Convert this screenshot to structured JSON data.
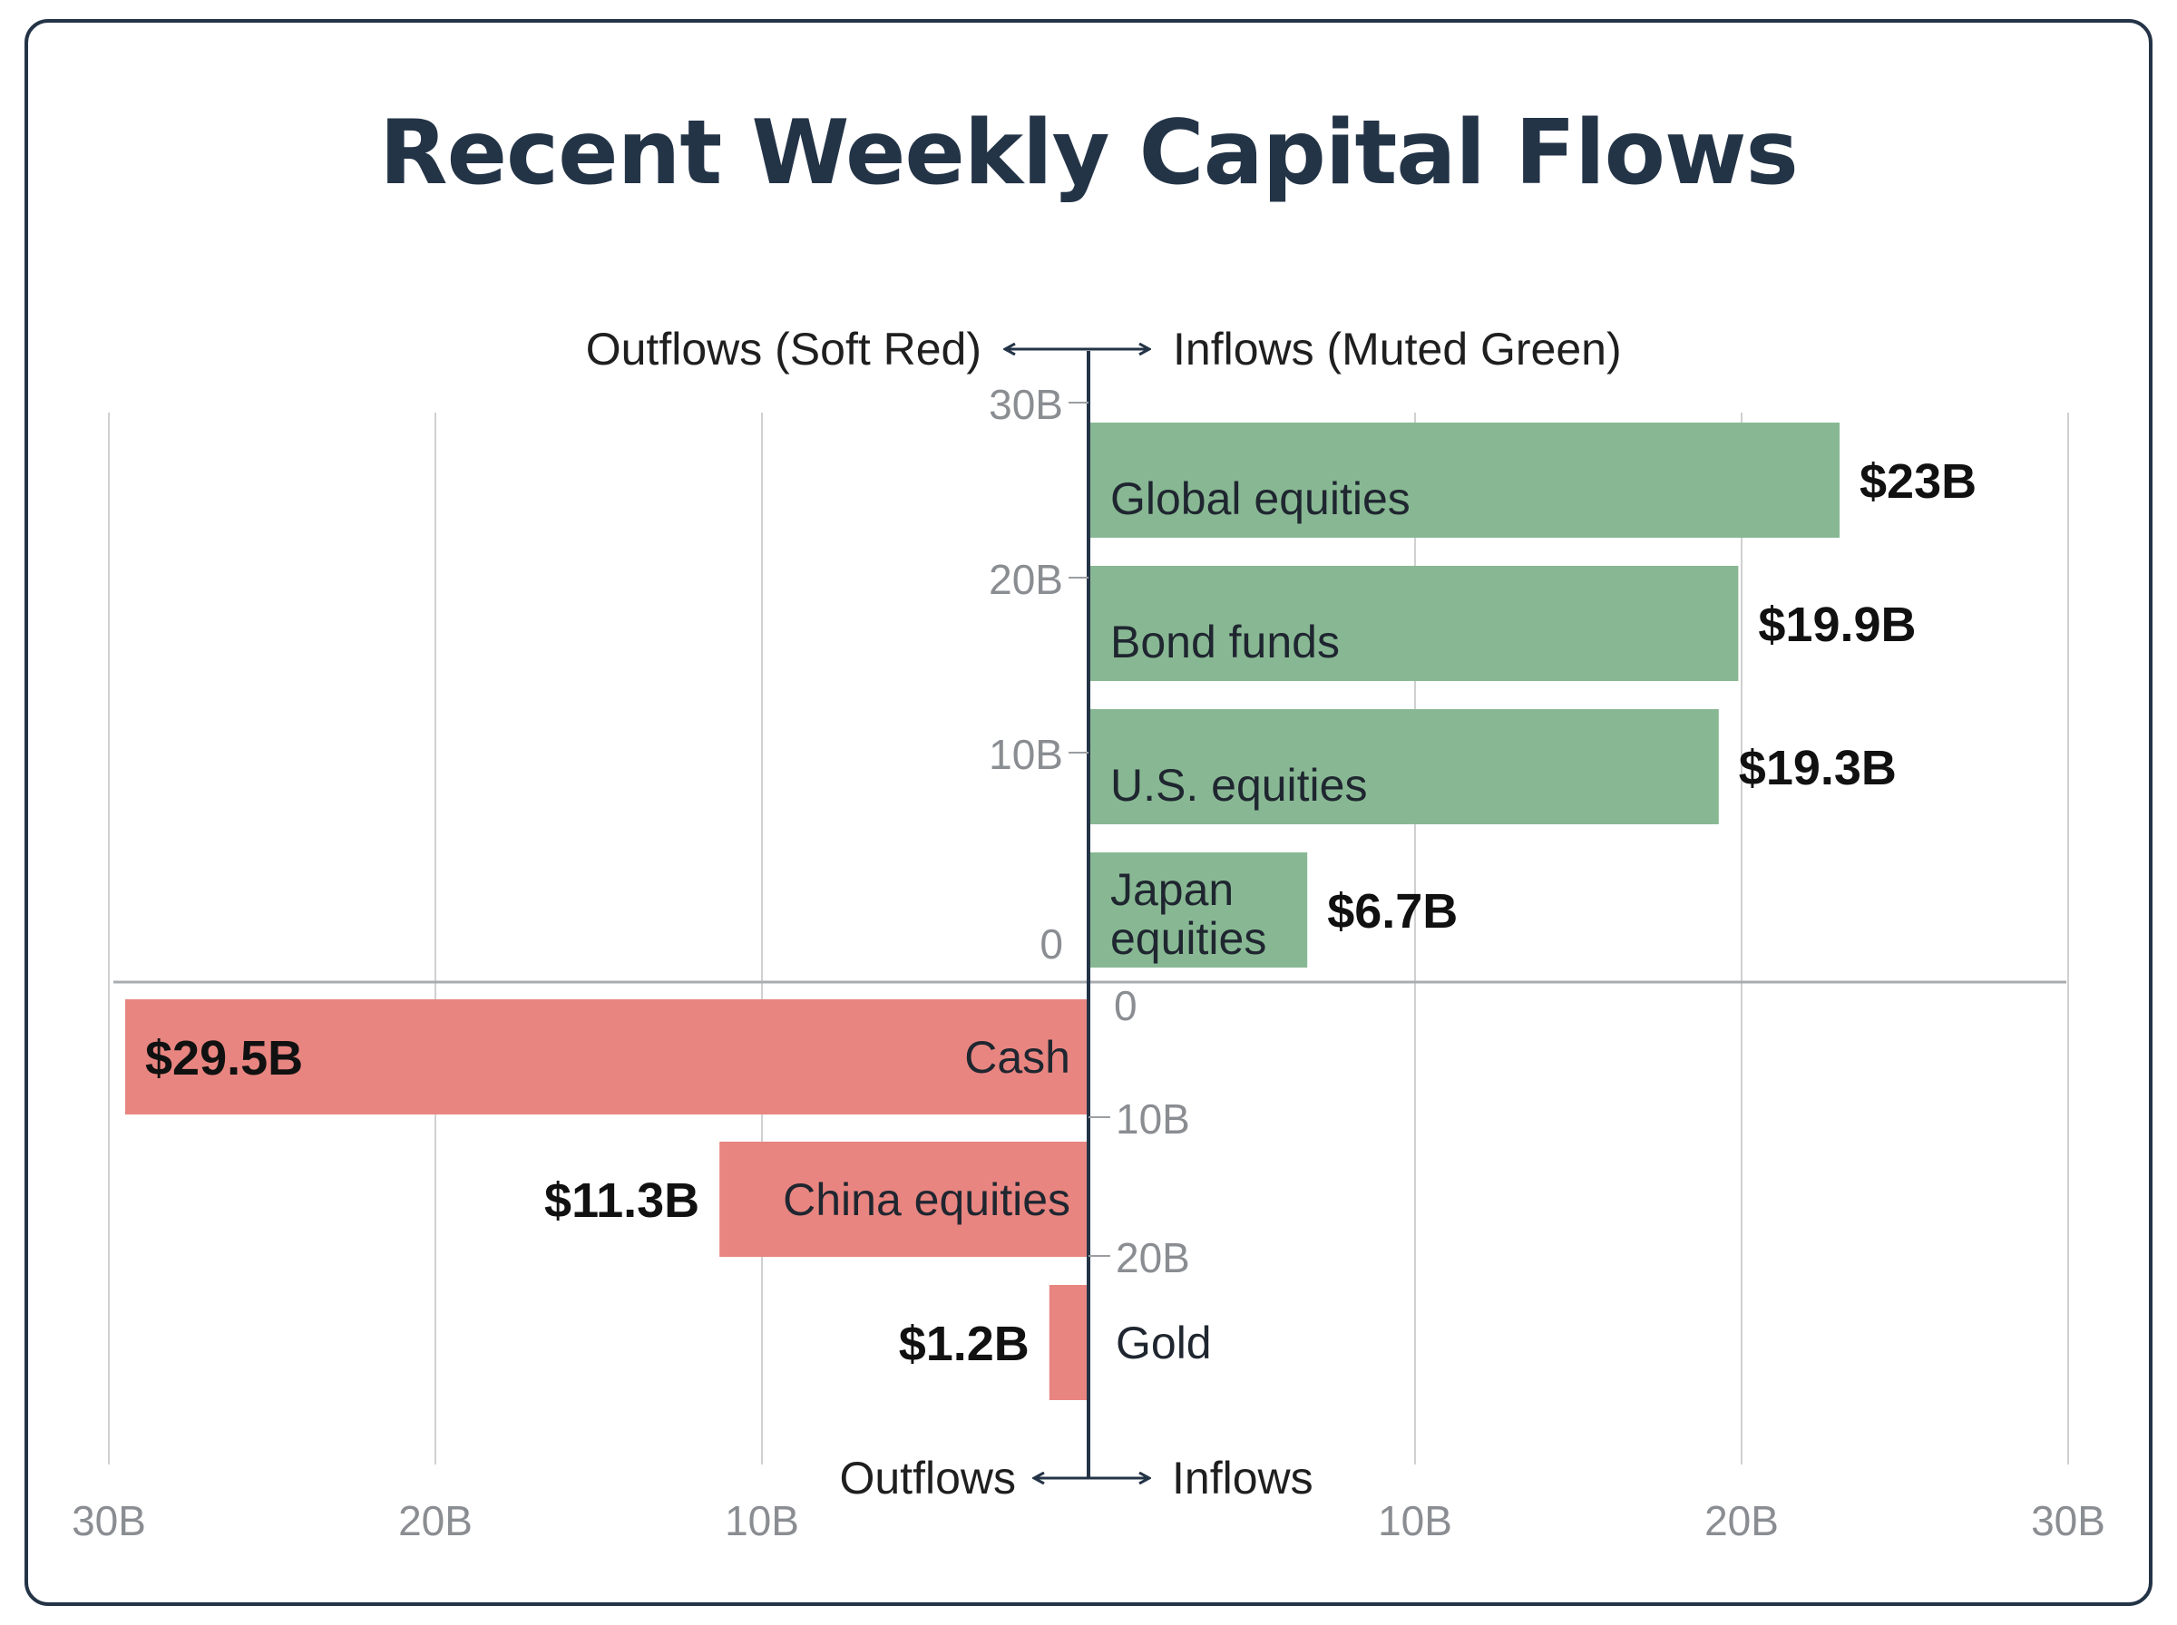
{
  "chart_data": {
    "type": "bar",
    "orientation": "horizontal-diverging",
    "title": "Recent Weekly Capital Flows",
    "header_labels": {
      "left": "Outflows (Soft Red)",
      "right": "Inflows (Muted Green)"
    },
    "footer_labels": {
      "left": "Outflows",
      "right": "Inflows"
    },
    "x_ticks": [
      "30B",
      "20B",
      "10B",
      "10B",
      "20B",
      "30B"
    ],
    "inflow_axis_ticks": [
      "30B",
      "20B",
      "10B",
      "0"
    ],
    "outflow_axis_ticks": [
      "0",
      "10B",
      "20B"
    ],
    "xlim": [
      -30,
      30
    ],
    "units": "billions USD",
    "grid": true,
    "colors": {
      "inflow": "#88b893",
      "outflow": "#e88580",
      "axis": "#243447",
      "grid": "#d0d0d0"
    },
    "series": [
      {
        "name": "Inflows",
        "categories": [
          "Global equities",
          "Bond funds",
          "U.S. equities",
          "Japan equities"
        ],
        "values": [
          23,
          19.9,
          19.3,
          6.7
        ],
        "labels": [
          "$23B",
          "$19.9B",
          "$19.3B",
          "$6.7B"
        ]
      },
      {
        "name": "Outflows",
        "categories": [
          "Cash",
          "China equities",
          "Gold"
        ],
        "values": [
          -29.5,
          -11.3,
          -1.2
        ],
        "labels": [
          "$29.5B",
          "$11.3B",
          "$1.2B"
        ]
      }
    ]
  }
}
